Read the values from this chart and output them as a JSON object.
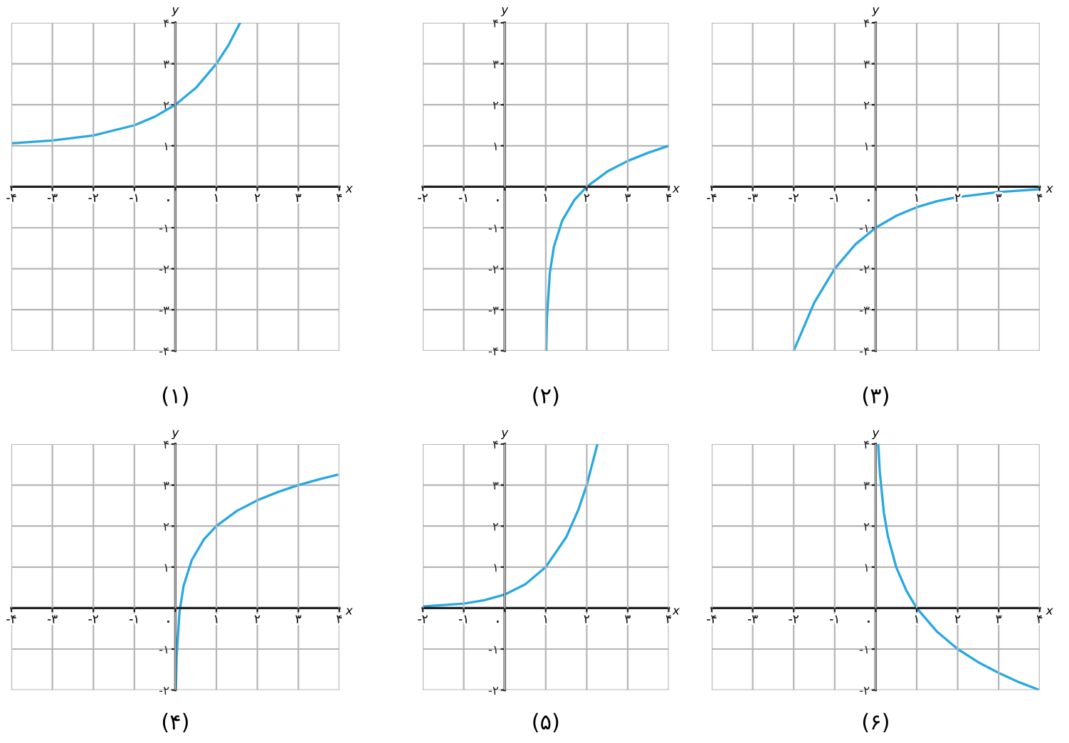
{
  "chart_data": [
    {
      "type": "line",
      "title": "(۱)",
      "xlabel": "x",
      "ylabel": "y",
      "grid": true,
      "xlim": [
        -4,
        4
      ],
      "ylim": [
        -4,
        4
      ],
      "xticks": [
        {
          "value": -4,
          "label": "-۴"
        },
        {
          "value": -3,
          "label": "-۳"
        },
        {
          "value": -2,
          "label": "-۲"
        },
        {
          "value": -1,
          "label": "-۱"
        },
        {
          "value": 0,
          "label": "۰"
        },
        {
          "value": 1,
          "label": "۱"
        },
        {
          "value": 2,
          "label": "۲"
        },
        {
          "value": 3,
          "label": "۳"
        },
        {
          "value": 4,
          "label": "۴"
        }
      ],
      "yticks": [
        {
          "value": -4,
          "label": "-۴"
        },
        {
          "value": -3,
          "label": "-۳"
        },
        {
          "value": -2,
          "label": "-۲"
        },
        {
          "value": -1,
          "label": "-۱"
        },
        {
          "value": 1,
          "label": "۱"
        },
        {
          "value": 2,
          "label": "۲"
        },
        {
          "value": 3,
          "label": "۳"
        },
        {
          "value": 4,
          "label": "۴"
        }
      ],
      "series": [
        {
          "color": "#29a8e0",
          "x": [
            -4,
            -3,
            -2,
            -1,
            -0.5,
            0,
            0.5,
            1,
            1.3,
            1.58
          ],
          "values": [
            1.06,
            1.13,
            1.25,
            1.5,
            1.71,
            2,
            2.41,
            3,
            3.46,
            4
          ]
        }
      ]
    },
    {
      "type": "line",
      "title": "(۲)",
      "xlabel": "x",
      "ylabel": "y",
      "grid": true,
      "xlim": [
        -2,
        4
      ],
      "ylim": [
        -4,
        4
      ],
      "xticks": [
        {
          "value": -2,
          "label": "-۲"
        },
        {
          "value": -1,
          "label": "-۱"
        },
        {
          "value": 0,
          "label": "۰"
        },
        {
          "value": 1,
          "label": "۱"
        },
        {
          "value": 2,
          "label": "۲"
        },
        {
          "value": 3,
          "label": "۳"
        },
        {
          "value": 4,
          "label": "۴"
        }
      ],
      "yticks": [
        {
          "value": -4,
          "label": "-۴"
        },
        {
          "value": -3,
          "label": "-۳"
        },
        {
          "value": -2,
          "label": "-۲"
        },
        {
          "value": -1,
          "label": "-۱"
        },
        {
          "value": 1,
          "label": "۱"
        },
        {
          "value": 2,
          "label": "۲"
        },
        {
          "value": 3,
          "label": "۳"
        },
        {
          "value": 4,
          "label": "۴"
        }
      ],
      "series": [
        {
          "color": "#29a8e0",
          "x": [
            1.012,
            1.03,
            1.1,
            1.2,
            1.4,
            1.7,
            2,
            2.5,
            3,
            3.5,
            4
          ],
          "values": [
            -4,
            -3.19,
            -2.1,
            -1.46,
            -0.83,
            -0.32,
            0,
            0.37,
            0.63,
            0.83,
            1
          ]
        }
      ]
    },
    {
      "type": "line",
      "title": "(۳)",
      "xlabel": "x",
      "ylabel": "y",
      "grid": true,
      "xlim": [
        -4,
        4
      ],
      "ylim": [
        -4,
        4
      ],
      "xticks": [
        {
          "value": -4,
          "label": "-۴"
        },
        {
          "value": -3,
          "label": "-۳"
        },
        {
          "value": -2,
          "label": "-۲"
        },
        {
          "value": -1,
          "label": "-۱"
        },
        {
          "value": 0,
          "label": "۰"
        },
        {
          "value": 1,
          "label": "۱"
        },
        {
          "value": 2,
          "label": "۲"
        },
        {
          "value": 3,
          "label": "۳"
        },
        {
          "value": 4,
          "label": "۴"
        }
      ],
      "yticks": [
        {
          "value": -4,
          "label": "-۴"
        },
        {
          "value": -3,
          "label": "-۳"
        },
        {
          "value": -2,
          "label": "-۲"
        },
        {
          "value": -1,
          "label": "-۱"
        },
        {
          "value": 1,
          "label": "۱"
        },
        {
          "value": 2,
          "label": "۲"
        },
        {
          "value": 3,
          "label": "۳"
        },
        {
          "value": 4,
          "label": "۴"
        }
      ],
      "series": [
        {
          "color": "#29a8e0",
          "x": [
            -2,
            -1.5,
            -1,
            -0.5,
            0,
            0.5,
            1,
            1.5,
            2,
            3,
            4
          ],
          "values": [
            -4,
            -2.83,
            -2,
            -1.41,
            -1,
            -0.71,
            -0.5,
            -0.35,
            -0.25,
            -0.13,
            -0.06
          ]
        }
      ]
    },
    {
      "type": "line",
      "title": "(۴)",
      "xlabel": "x",
      "ylabel": "y",
      "grid": true,
      "xlim": [
        -4,
        4
      ],
      "ylim": [
        -2,
        4
      ],
      "xticks": [
        {
          "value": -4,
          "label": "-۴"
        },
        {
          "value": -3,
          "label": "-۳"
        },
        {
          "value": -2,
          "label": "-۲"
        },
        {
          "value": -1,
          "label": "-۱"
        },
        {
          "value": 0,
          "label": "۰"
        },
        {
          "value": 1,
          "label": "۱"
        },
        {
          "value": 2,
          "label": "۲"
        },
        {
          "value": 3,
          "label": "۳"
        },
        {
          "value": 4,
          "label": "۴"
        }
      ],
      "yticks": [
        {
          "value": -2,
          "label": "-۲"
        },
        {
          "value": -1,
          "label": "-۱"
        },
        {
          "value": 1,
          "label": "۱"
        },
        {
          "value": 2,
          "label": "۲"
        },
        {
          "value": 3,
          "label": "۳"
        },
        {
          "value": 4,
          "label": "۴"
        }
      ],
      "series": [
        {
          "color": "#29a8e0",
          "x": [
            0.012,
            0.03,
            0.1,
            0.2,
            0.4,
            0.7,
            1,
            1.5,
            2,
            2.5,
            3,
            3.5,
            3.95
          ],
          "values": [
            -2,
            -1.19,
            -0.1,
            0.54,
            1.17,
            1.68,
            2,
            2.37,
            2.63,
            2.83,
            3,
            3.14,
            3.25
          ]
        }
      ]
    },
    {
      "type": "line",
      "title": "(۵)",
      "xlabel": "x",
      "ylabel": "y",
      "grid": true,
      "xlim": [
        -2,
        4
      ],
      "ylim": [
        -2,
        4
      ],
      "xticks": [
        {
          "value": -2,
          "label": "-۲"
        },
        {
          "value": -1,
          "label": "-۱"
        },
        {
          "value": 0,
          "label": "۰"
        },
        {
          "value": 1,
          "label": "۱"
        },
        {
          "value": 2,
          "label": "۲"
        },
        {
          "value": 3,
          "label": "۳"
        },
        {
          "value": 4,
          "label": "۴"
        }
      ],
      "yticks": [
        {
          "value": -2,
          "label": "-۲"
        },
        {
          "value": -1,
          "label": "-۱"
        },
        {
          "value": 1,
          "label": "۱"
        },
        {
          "value": 2,
          "label": "۲"
        },
        {
          "value": 3,
          "label": "۳"
        },
        {
          "value": 4,
          "label": "۴"
        }
      ],
      "series": [
        {
          "color": "#29a8e0",
          "x": [
            -2,
            -1,
            -0.5,
            0,
            0.5,
            1,
            1.5,
            1.8,
            2,
            2.26
          ],
          "values": [
            0.04,
            0.11,
            0.19,
            0.33,
            0.58,
            1,
            1.73,
            2.41,
            3,
            4
          ]
        }
      ]
    },
    {
      "type": "line",
      "title": "(۶)",
      "xlabel": "x",
      "ylabel": "y",
      "grid": true,
      "xlim": [
        -4,
        4
      ],
      "ylim": [
        -2,
        4
      ],
      "xticks": [
        {
          "value": -4,
          "label": "-۴"
        },
        {
          "value": -3,
          "label": "-۳"
        },
        {
          "value": -2,
          "label": "-۲"
        },
        {
          "value": -1,
          "label": "-۱"
        },
        {
          "value": 0,
          "label": "۰"
        },
        {
          "value": 1,
          "label": "۱"
        },
        {
          "value": 2,
          "label": "۲"
        },
        {
          "value": 3,
          "label": "۳"
        },
        {
          "value": 4,
          "label": "۴"
        }
      ],
      "yticks": [
        {
          "value": -2,
          "label": "-۲"
        },
        {
          "value": -1,
          "label": "-۱"
        },
        {
          "value": 1,
          "label": "۱"
        },
        {
          "value": 2,
          "label": "۲"
        },
        {
          "value": 3,
          "label": "۳"
        },
        {
          "value": 4,
          "label": "۴"
        }
      ],
      "series": [
        {
          "color": "#29a8e0",
          "x": [
            0.0625,
            0.1,
            0.2,
            0.3,
            0.5,
            0.75,
            1,
            1.5,
            2,
            2.5,
            3,
            3.5,
            4
          ],
          "values": [
            4,
            3.32,
            2.32,
            1.74,
            1,
            0.42,
            0,
            -0.58,
            -1,
            -1.32,
            -1.58,
            -1.81,
            -2
          ]
        }
      ]
    }
  ]
}
